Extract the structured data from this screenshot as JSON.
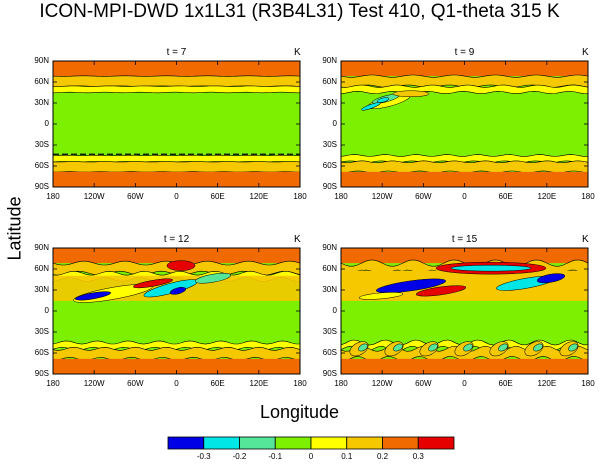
{
  "chart_data": {
    "type": "heatmap",
    "title": "ICON-MPI-DWD 1x1L31 (R3B4L31) Test 410, Q1-theta 315 K",
    "xlabel": "Longitude",
    "ylabel": "Latitude",
    "x_ticks": [
      "180",
      "120W",
      "60W",
      "0",
      "60E",
      "120E",
      "180"
    ],
    "y_ticks": [
      "90N",
      "60N",
      "30N",
      "0",
      "30S",
      "60S",
      "90S"
    ],
    "units": "K",
    "panels": [
      {
        "title": "t = 7",
        "unit": "K"
      },
      {
        "title": "t = 9",
        "unit": "K"
      },
      {
        "title": "t = 12",
        "unit": "K"
      },
      {
        "title": "t = 15",
        "unit": "K"
      }
    ],
    "colorbar": {
      "levels": [
        "-0.3",
        "-0.2",
        "-0.1",
        "0",
        "0.1",
        "0.2",
        "0.3"
      ],
      "colors": [
        "#0000e6",
        "#00e6e6",
        "#55e69a",
        "#7cf000",
        "#ffff00",
        "#f5c800",
        "#f06a00",
        "#e60000"
      ]
    }
  }
}
